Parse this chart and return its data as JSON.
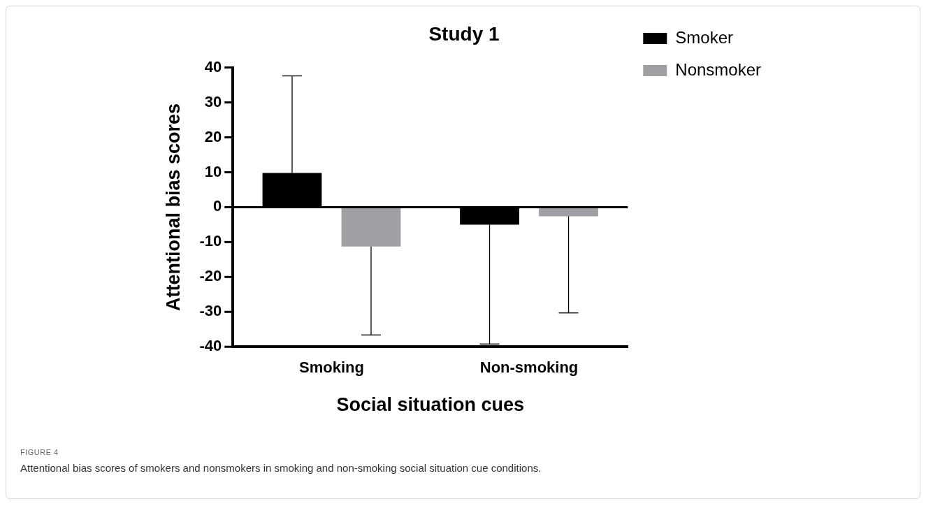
{
  "chart_data": {
    "type": "bar",
    "title": "Study 1",
    "xlabel": "Social situation cues",
    "ylabel": "Attentional bias scores",
    "categories": [
      "Smoking",
      "Non-smoking"
    ],
    "series": [
      {
        "name": "Smoker",
        "color": "#000000",
        "values": [
          9.8,
          -5.0
        ],
        "errors": [
          [
            9.8,
            37.6
          ],
          [
            -39.2,
            -5.0
          ]
        ]
      },
      {
        "name": "Nonsmoker",
        "color": "#a0a0a4",
        "values": [
          -11.3,
          -2.6
        ],
        "errors": [
          [
            -36.6,
            -11.3
          ],
          [
            -30.3,
            -2.6
          ]
        ]
      }
    ],
    "ylim": [
      -40,
      40
    ],
    "yticks": [
      -40,
      -30,
      -20,
      -10,
      0,
      10,
      20,
      30,
      40
    ],
    "grid": false,
    "legend": "top right",
    "ref_lines": [
      {
        "axis": "y",
        "value": 0,
        "color": "#000000"
      }
    ],
    "annotations": [
      "FIGURE 4",
      "Attentional bias scores of smokers and nonsmokers in smoking and non-smoking social situation cue conditions."
    ]
  }
}
